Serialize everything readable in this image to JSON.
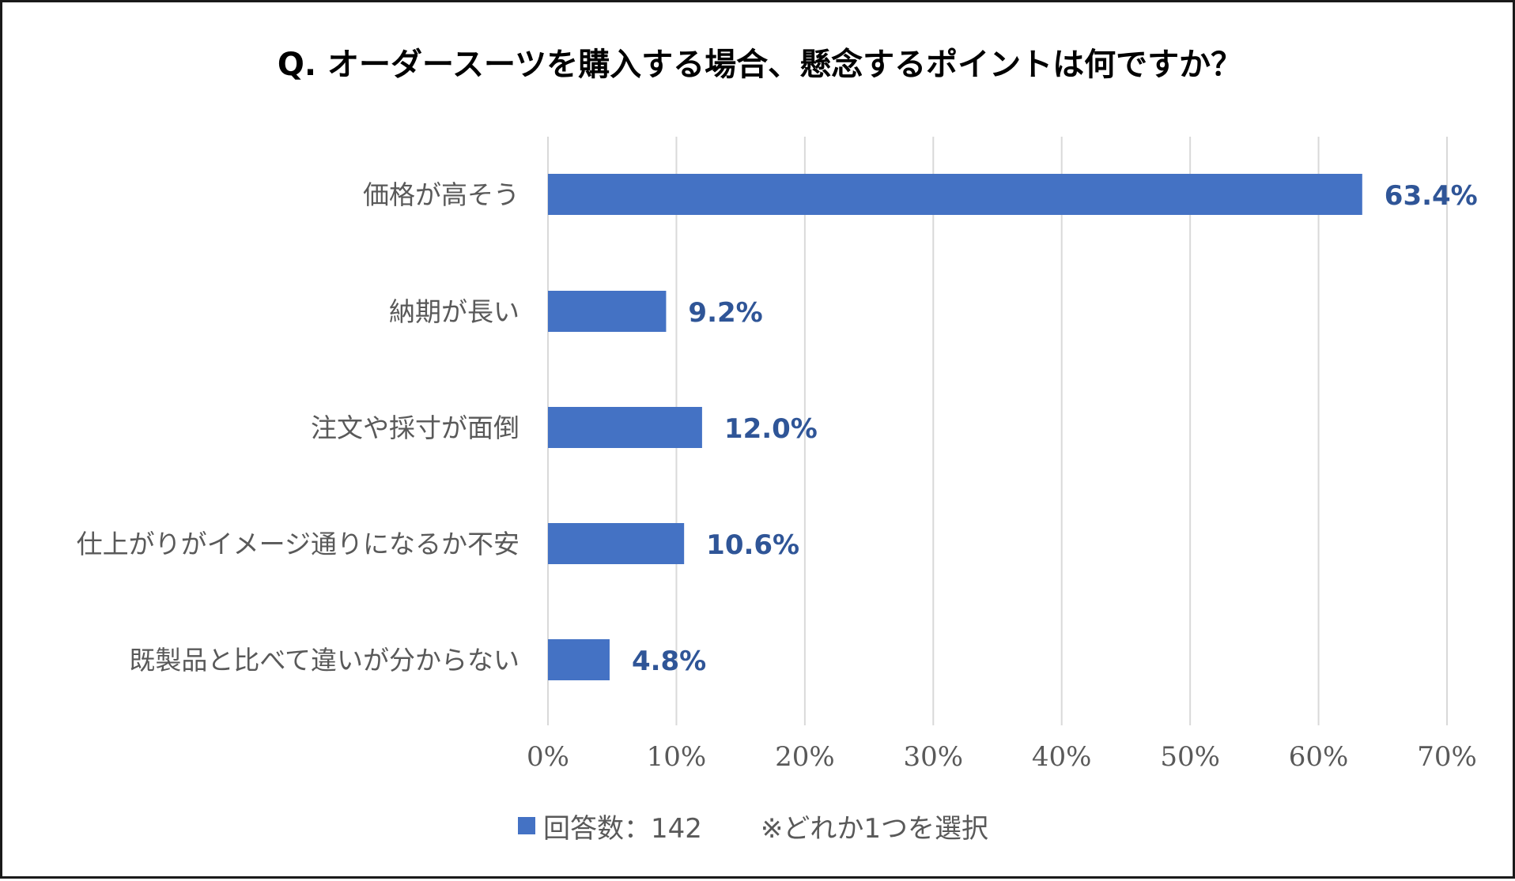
{
  "colors": {
    "bar": "#4472C4",
    "data_label": "#2F5597",
    "category_text": "#595959",
    "tick_text": "#595959",
    "gridline": "#D9D9D9",
    "title": "#000000"
  },
  "legend": {
    "series_label": "回答数：142",
    "note": "※どれか1つを選択"
  },
  "chart_data": {
    "type": "bar",
    "orientation": "horizontal",
    "title": "Q. オーダースーツを購入する場合、懸念するポイントは何ですか？",
    "categories": [
      "価格が高そう",
      "納期が長い",
      "注文や採寸が面倒",
      "仕上がりがイメージ通りになるか不安",
      "既製品と比べて違いが分からない"
    ],
    "values": [
      63.4,
      9.2,
      12.0,
      10.6,
      4.8
    ],
    "value_labels": [
      "63.4%",
      "9.2%",
      "12.0%",
      "10.6%",
      "4.8%"
    ],
    "series": [
      {
        "name": "回答数：142",
        "values": [
          63.4,
          9.2,
          12.0,
          10.6,
          4.8
        ]
      }
    ],
    "xlim": [
      0,
      70
    ],
    "x_ticks": [
      0,
      10,
      20,
      30,
      40,
      50,
      60,
      70
    ],
    "x_tick_labels": [
      "0%",
      "10%",
      "20%",
      "30%",
      "40%",
      "50%",
      "60%",
      "70%"
    ],
    "xlabel": "",
    "ylabel": "",
    "grid": true,
    "legend_position": "bottom"
  }
}
